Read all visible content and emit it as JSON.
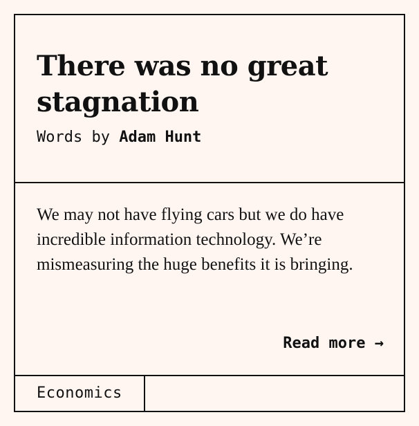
{
  "article": {
    "title": "There was no great stagnation",
    "byline_prefix": "Words by",
    "author": "Adam Hunt",
    "summary": "We may not have flying cars but we do have incredible information technology. We’re mismeasuring the huge benefits it is bringing.",
    "read_more_label": "Read more →",
    "tag": "Economics"
  },
  "colors": {
    "background": "#fff6f2",
    "ink": "#111111"
  }
}
